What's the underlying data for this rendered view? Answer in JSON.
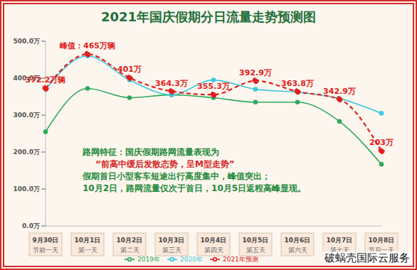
{
  "chart_data": {
    "type": "line",
    "title": "2021年国庆假期分日流量走势预测图",
    "categories": [
      "9月30日",
      "10月1日",
      "10月2日",
      "10月3日",
      "10月4日",
      "10月5日",
      "10月6日",
      "10月7日",
      "10月8日"
    ],
    "category_sublabels": [
      "节前一天",
      "第一天",
      "第二天",
      "第三天",
      "第四天",
      "第五天",
      "第六天",
      "第七天",
      "节后一天"
    ],
    "series": [
      {
        "name": "2019年",
        "color": "#2eaa5c",
        "marker": "circle",
        "line_style": "solid",
        "values": [
          255,
          372,
          347,
          355,
          347,
          335,
          335,
          283,
          167
        ]
      },
      {
        "name": "2020年",
        "color": "#3cc8e0",
        "marker": "circle",
        "line_style": "solid",
        "values": [
          370,
          460,
          395,
          355,
          395,
          370,
          362,
          345,
          305
        ]
      },
      {
        "name": "2021年预测",
        "color": "#e02020",
        "marker": "circle",
        "line_style": "dashed",
        "values": [
          372.2,
          465,
          401,
          364.3,
          355.3,
          392.9,
          363.8,
          342.9,
          203
        ],
        "value_labels": [
          "372.2万辆",
          "峰值：465万辆",
          "401万",
          "364.3万",
          "355.3万",
          "392.9万",
          "363.8万",
          "342.9万",
          "203万"
        ]
      }
    ],
    "ylim": [
      0,
      500
    ],
    "yticks": [
      {
        "value": 0,
        "label": "0.0万"
      },
      {
        "value": 100,
        "label": "100.0万"
      },
      {
        "value": 200,
        "label": "200.0万"
      },
      {
        "value": 300,
        "label": "300.0万"
      },
      {
        "value": 400,
        "label": "400.0万"
      },
      {
        "value": 500,
        "label": "500.0万"
      }
    ],
    "grid": false,
    "legend": "bottom",
    "annotations": [
      "路网特征：国庆假期路网流量表现为",
      "“前高中缓后发散态势，呈M型走势”",
      "假期首日小型客车短途出行高度集中，峰值突出；",
      "10月2日，路网流量仅次于首日，10月5日返程高峰显现。"
    ],
    "watermark": "破蜗壳国际云服务"
  }
}
